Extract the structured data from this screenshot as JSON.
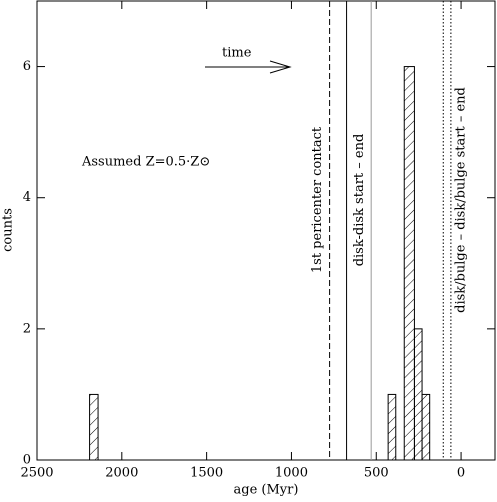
{
  "chart_data": {
    "type": "histogram",
    "xlabel": "age (Myr)",
    "ylabel": "counts",
    "bins": [
      2190,
      2140,
      430,
      385,
      335,
      275,
      230,
      185
    ],
    "values": [
      1,
      0,
      1,
      0,
      6,
      2,
      1
    ],
    "xlim": [
      2500,
      -200
    ],
    "xticks": [
      2500,
      2000,
      1500,
      1000,
      500,
      0
    ],
    "ylim": [
      0,
      7
    ],
    "yticks": [
      0,
      2,
      4,
      6
    ],
    "color": "#000000",
    "hatch": true,
    "vlines": [
      {
        "value": 775,
        "style": "dashed",
        "color": "#000000",
        "label": "1st pericenter contact"
      },
      {
        "value": 675,
        "style": "solid",
        "color": "#000000",
        "label": "disk-disk start – end"
      },
      {
        "value": 530,
        "style": "solid",
        "color": "#999999"
      },
      {
        "value": 105,
        "style": "dotted",
        "color": "#000000"
      },
      {
        "value": 60,
        "style": "dotted",
        "color": "#000000",
        "label": "disk/bulge – disk/bulge start – end"
      }
    ],
    "annotations": [
      "time",
      "Assumed Z=0.5·Z⊙"
    ]
  }
}
